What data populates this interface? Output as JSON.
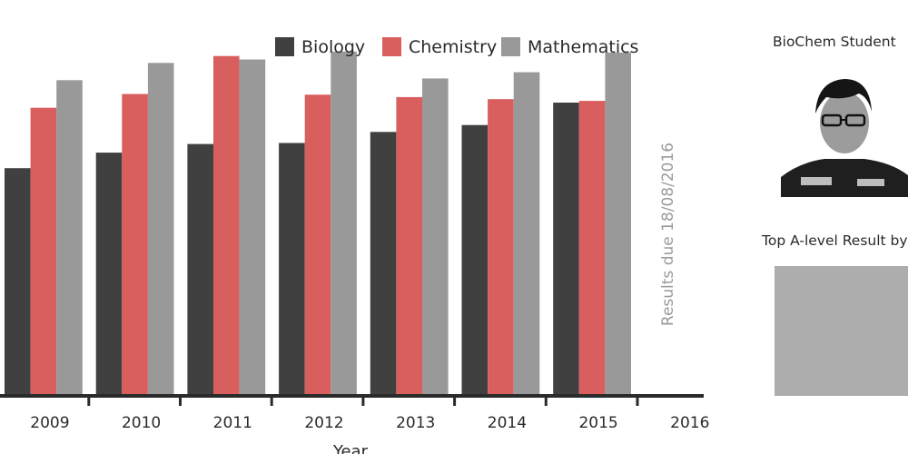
{
  "chart_data": {
    "type": "bar",
    "categories": [
      "2009",
      "2010",
      "2011",
      "2012",
      "2013",
      "2014",
      "2015",
      "2016"
    ],
    "series": [
      {
        "name": "Biology",
        "color": "#404040",
        "values": [
          66,
          70.5,
          73,
          73.3,
          76.5,
          78.5,
          85,
          null
        ]
      },
      {
        "name": "Chemistry",
        "color": "#d95f5f",
        "values": [
          83.5,
          87.5,
          98.5,
          87.3,
          86.6,
          86,
          85.5,
          null
        ]
      },
      {
        "name": "Mathematics",
        "color": "#999999",
        "values": [
          91.5,
          96.5,
          97.5,
          99.8,
          92,
          93.8,
          99.5,
          null
        ]
      }
    ],
    "xlabel": "Year",
    "ylabel": "",
    "ylim": [
      0,
      100
    ],
    "legend_position": "top",
    "annotation": "Results due 18/08/2016"
  },
  "sidebar": {
    "student_title": "BioChem Student",
    "result_title": "Top A-level Result by"
  },
  "icons": {
    "student_photo": "student-photo-icon"
  }
}
